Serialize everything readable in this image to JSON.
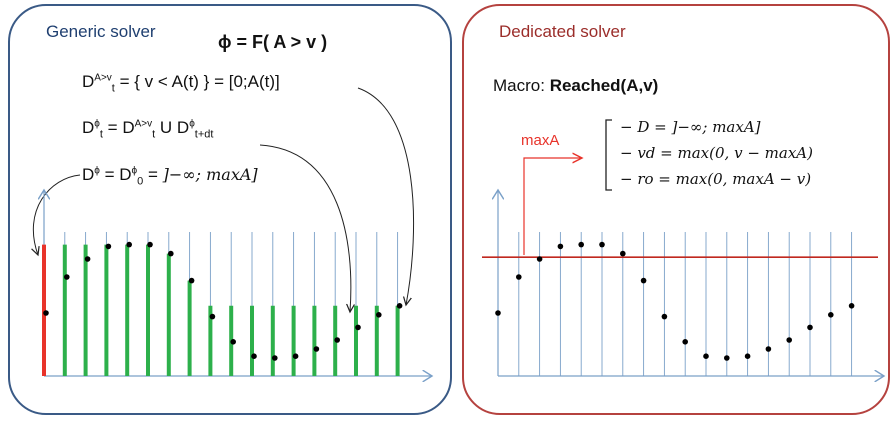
{
  "left": {
    "title": "Generic solver",
    "formula_main": "ϕ = F( A > v )",
    "line1": {
      "pre": "D",
      "sup": "A>v",
      "sub": "t",
      "post": " = { v < A(t) } = [0;A(t)]"
    },
    "line2": {
      "p1": "D",
      "sup1": "ϕ",
      "sub1": "t",
      "p2": " = D",
      "sup2": "A>v",
      "sub2": "t",
      "p3": " U D",
      "sup3": "ϕ",
      "sub3": "t+dt"
    },
    "line3": {
      "p1": "D",
      "sup1": "ϕ",
      "p2": " = D",
      "sup2": "ϕ",
      "sub2": "0",
      "p3": " = ",
      "interval": "]−∞; maxA]"
    }
  },
  "right": {
    "title": "Dedicated solver",
    "macro_label": "Macro: ",
    "macro_name": "Reached(A,v)",
    "maxA_label": "maxA",
    "defs": [
      "− D = ]−∞; maxA]",
      "− vd = max(0, v − maxA)",
      "− ro = max(0, maxA − v)"
    ]
  },
  "colors": {
    "panel_left": "#3a5a86",
    "panel_right": "#b5423f",
    "axis": "#7aa0c8",
    "green": "#2db04b",
    "red": "#e8332a"
  },
  "chart_data": {
    "type": "scatter",
    "samples": [
      0.35,
      0.55,
      0.65,
      0.72,
      0.73,
      0.73,
      0.68,
      0.53,
      0.33,
      0.19,
      0.11,
      0.1,
      0.11,
      0.15,
      0.2,
      0.27,
      0.34,
      0.39
    ],
    "threshold_maxA": 0.66
  }
}
